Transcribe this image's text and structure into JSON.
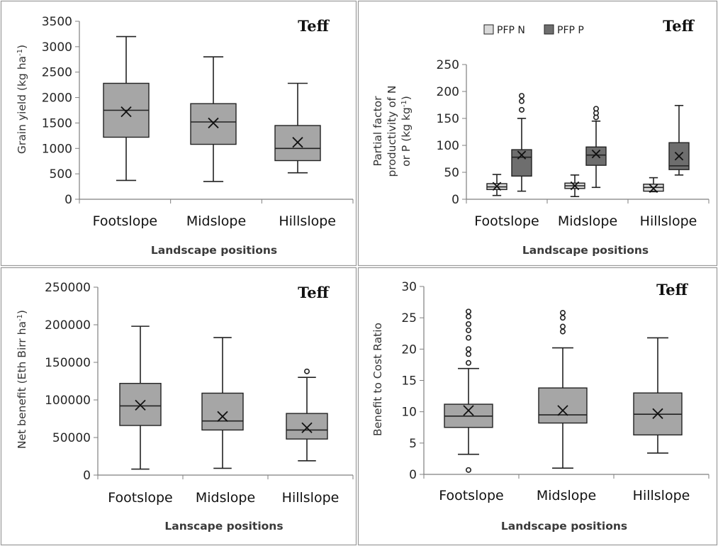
{
  "chart_data": [
    {
      "type": "boxplot",
      "crop_label": "Teff",
      "xlabel": "Landscape positions",
      "ylabel": "Grain yield (kg ha",
      "ylabel_sup": "-1",
      "ylabel_end": ")",
      "ylim": [
        0,
        3500
      ],
      "yticks": [
        "0",
        "500",
        "1000",
        "1500",
        "2000",
        "2500",
        "3000",
        "3500"
      ],
      "categories": [
        "Footslope",
        "Midslope",
        "Hillslope"
      ],
      "series": [
        {
          "name": "Grain yield",
          "color": "#a6a6a6",
          "boxes": [
            {
              "min": 370,
              "q1": 1220,
              "median": 1750,
              "q3": 2280,
              "max": 3200,
              "mean": 1720,
              "outliers": []
            },
            {
              "min": 350,
              "q1": 1080,
              "median": 1520,
              "q3": 1880,
              "max": 2800,
              "mean": 1500,
              "outliers": []
            },
            {
              "min": 520,
              "q1": 760,
              "median": 1000,
              "q3": 1450,
              "max": 2280,
              "mean": 1120,
              "outliers": []
            }
          ]
        }
      ]
    },
    {
      "type": "boxplot",
      "crop_label": "Teff",
      "xlabel": "Landscape positions",
      "ylabel_line1": "Partial factor",
      "ylabel_line2": "productivity of N",
      "ylabel_line3": "or P (kg kg",
      "ylabel_sup": "-1",
      "ylabel_end": ")",
      "ylim": [
        0,
        250
      ],
      "yticks": [
        "0",
        "50",
        "100",
        "150",
        "200",
        "250"
      ],
      "categories": [
        "Footslope",
        "Midslope",
        "Hillslope"
      ],
      "legend": [
        "PFP N",
        "PFP P"
      ],
      "legend_position": "top-center",
      "series": [
        {
          "name": "PFP N",
          "color": "#d9d9d9",
          "boxes": [
            {
              "min": 7,
              "q1": 18,
              "median": 23,
              "q3": 29,
              "max": 46,
              "mean": 24,
              "outliers": []
            },
            {
              "min": 5,
              "q1": 20,
              "median": 25,
              "q3": 30,
              "max": 45,
              "mean": 25,
              "outliers": []
            },
            {
              "min": 14,
              "q1": 15,
              "median": 22,
              "q3": 28,
              "max": 40,
              "mean": 20,
              "outliers": []
            }
          ]
        },
        {
          "name": "PFP P",
          "color": "#6e6e6e",
          "boxes": [
            {
              "min": 15,
              "q1": 43,
              "median": 78,
              "q3": 92,
              "max": 150,
              "mean": 82,
              "outliers": [
                166,
                182,
                192
              ]
            },
            {
              "min": 22,
              "q1": 63,
              "median": 82,
              "q3": 97,
              "max": 145,
              "mean": 84,
              "outliers": [
                152,
                160,
                168
              ]
            },
            {
              "min": 45,
              "q1": 55,
              "median": 62,
              "q3": 105,
              "max": 174,
              "mean": 80,
              "outliers": []
            }
          ]
        }
      ]
    },
    {
      "type": "boxplot",
      "crop_label": "Teff",
      "xlabel": "Lanscape positions",
      "ylabel": "Net benefit (Eth Birr ha",
      "ylabel_sup": "-1",
      "ylabel_end": ")",
      "ylim": [
        0,
        250000
      ],
      "yticks": [
        "0",
        "50000",
        "100000",
        "150000",
        "200000",
        "250000"
      ],
      "categories": [
        "Footslope",
        "Midslope",
        "Hillslope"
      ],
      "series": [
        {
          "name": "Net benefit",
          "color": "#a6a6a6",
          "boxes": [
            {
              "min": 8000,
              "q1": 66000,
              "median": 92000,
              "q3": 122000,
              "max": 198000,
              "mean": 93000,
              "outliers": []
            },
            {
              "min": 9000,
              "q1": 60000,
              "median": 72000,
              "q3": 109000,
              "max": 183000,
              "mean": 78000,
              "outliers": []
            },
            {
              "min": 19000,
              "q1": 48000,
              "median": 60000,
              "q3": 82000,
              "max": 130000,
              "mean": 63000,
              "outliers": [
                138000
              ]
            }
          ]
        }
      ]
    },
    {
      "type": "boxplot",
      "crop_label": "Teff",
      "xlabel": "Landscape positions",
      "ylabel": "Benefit to Cost Ratio",
      "ylim": [
        0,
        30
      ],
      "yticks": [
        "0",
        "5",
        "10",
        "15",
        "20",
        "25",
        "30"
      ],
      "categories": [
        "Footslope",
        "Midslope",
        "Hillslope"
      ],
      "series": [
        {
          "name": "Benefit to Cost Ratio",
          "color": "#a6a6a6",
          "boxes": [
            {
              "min": 3.2,
              "q1": 7.5,
              "median": 9.3,
              "q3": 11.2,
              "max": 16.9,
              "mean": 10.2,
              "outliers": [
                0.7,
                17.8,
                19.2,
                20.0,
                21.8,
                23.0,
                24.0,
                25.2,
                26.0
              ]
            },
            {
              "min": 1.0,
              "q1": 8.2,
              "median": 9.5,
              "q3": 13.8,
              "max": 20.2,
              "mean": 10.2,
              "outliers": [
                22.8,
                23.6,
                25.0,
                25.8
              ]
            },
            {
              "min": 3.4,
              "q1": 6.3,
              "median": 9.6,
              "q3": 13.0,
              "max": 21.8,
              "mean": 9.7,
              "outliers": []
            }
          ]
        }
      ]
    }
  ]
}
